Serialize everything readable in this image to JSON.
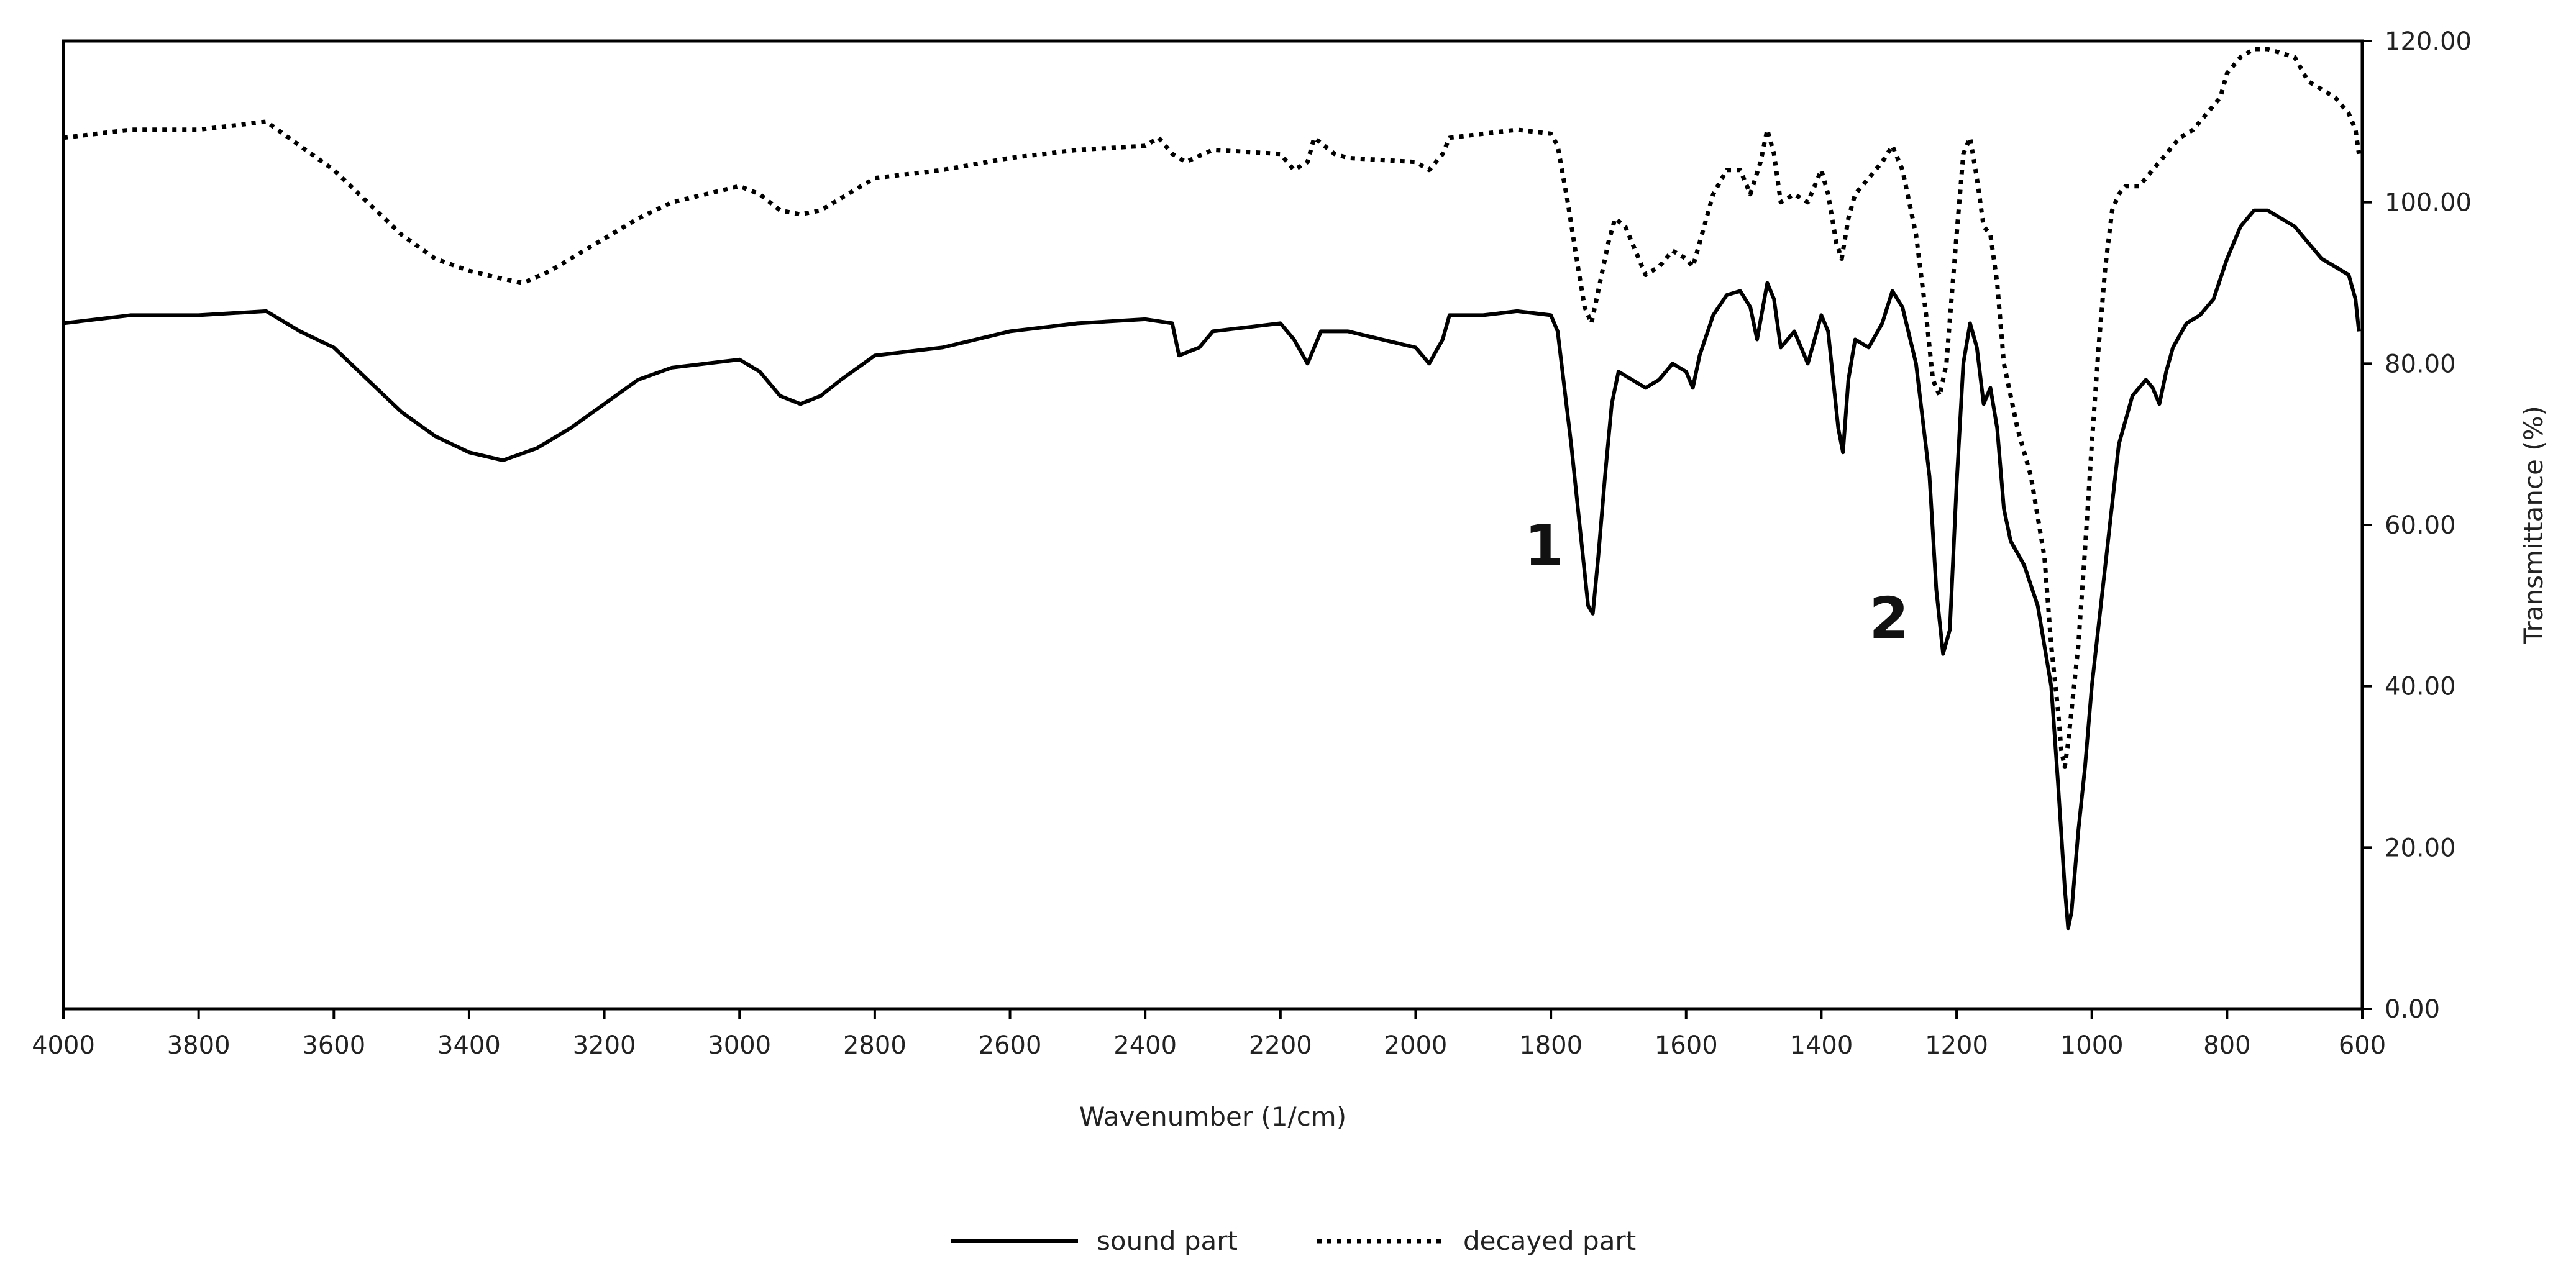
{
  "chart_data": {
    "type": "line",
    "title": "",
    "xlabel": "Wavenumber (1/cm)",
    "ylabel": "Transmittance (%)",
    "xlim": [
      4000,
      600
    ],
    "ylim": [
      0,
      120
    ],
    "x_reversed": true,
    "y_axis_side": "right",
    "grid": false,
    "legend_position": "bottom-center",
    "x_ticks": [
      "4000",
      "3800",
      "3600",
      "3400",
      "3200",
      "3000",
      "2800",
      "2600",
      "2400",
      "2200",
      "2000",
      "1800",
      "1600",
      "1400",
      "1200",
      "1000",
      "800",
      "600"
    ],
    "y_ticks": [
      "0.00",
      "20.00",
      "40.00",
      "60.00",
      "80.00",
      "100.00",
      "120.00"
    ],
    "annotations": [
      {
        "text": "1",
        "x": 1810,
        "y": 55
      },
      {
        "text": "2",
        "x": 1300,
        "y": 46
      }
    ],
    "series": [
      {
        "name": "sound part",
        "style": "solid",
        "color": "#000000",
        "points": [
          [
            4000,
            85
          ],
          [
            3900,
            86
          ],
          [
            3800,
            86
          ],
          [
            3700,
            86.5
          ],
          [
            3650,
            84
          ],
          [
            3600,
            82
          ],
          [
            3550,
            78
          ],
          [
            3500,
            74
          ],
          [
            3450,
            71
          ],
          [
            3400,
            69
          ],
          [
            3350,
            68
          ],
          [
            3300,
            69.5
          ],
          [
            3250,
            72
          ],
          [
            3200,
            75
          ],
          [
            3150,
            78
          ],
          [
            3100,
            79.5
          ],
          [
            3050,
            80
          ],
          [
            3000,
            80.5
          ],
          [
            2970,
            79
          ],
          [
            2940,
            76
          ],
          [
            2910,
            75
          ],
          [
            2880,
            76
          ],
          [
            2850,
            78
          ],
          [
            2800,
            81
          ],
          [
            2700,
            82
          ],
          [
            2600,
            84
          ],
          [
            2500,
            85
          ],
          [
            2400,
            85.5
          ],
          [
            2360,
            85
          ],
          [
            2350,
            81
          ],
          [
            2320,
            82
          ],
          [
            2300,
            84
          ],
          [
            2200,
            85
          ],
          [
            2180,
            83
          ],
          [
            2160,
            80
          ],
          [
            2140,
            84
          ],
          [
            2100,
            84
          ],
          [
            2000,
            82
          ],
          [
            1980,
            80
          ],
          [
            1960,
            83
          ],
          [
            1950,
            86
          ],
          [
            1900,
            86
          ],
          [
            1850,
            86.5
          ],
          [
            1800,
            86
          ],
          [
            1790,
            84
          ],
          [
            1770,
            70
          ],
          [
            1755,
            58
          ],
          [
            1745,
            50
          ],
          [
            1738,
            49
          ],
          [
            1730,
            56
          ],
          [
            1720,
            66
          ],
          [
            1710,
            75
          ],
          [
            1700,
            79
          ],
          [
            1680,
            78
          ],
          [
            1660,
            77
          ],
          [
            1640,
            78
          ],
          [
            1620,
            80
          ],
          [
            1600,
            79
          ],
          [
            1590,
            77
          ],
          [
            1580,
            81
          ],
          [
            1560,
            86
          ],
          [
            1540,
            88.5
          ],
          [
            1520,
            89
          ],
          [
            1505,
            87
          ],
          [
            1495,
            83
          ],
          [
            1480,
            90
          ],
          [
            1470,
            88
          ],
          [
            1460,
            82
          ],
          [
            1440,
            84
          ],
          [
            1430,
            82
          ],
          [
            1420,
            80
          ],
          [
            1400,
            86
          ],
          [
            1390,
            84
          ],
          [
            1375,
            72
          ],
          [
            1368,
            69
          ],
          [
            1360,
            78
          ],
          [
            1350,
            83
          ],
          [
            1330,
            82
          ],
          [
            1310,
            85
          ],
          [
            1295,
            89
          ],
          [
            1280,
            87
          ],
          [
            1260,
            80
          ],
          [
            1240,
            66
          ],
          [
            1230,
            52
          ],
          [
            1220,
            44
          ],
          [
            1210,
            47
          ],
          [
            1200,
            65
          ],
          [
            1190,
            80
          ],
          [
            1180,
            85
          ],
          [
            1170,
            82
          ],
          [
            1160,
            75
          ],
          [
            1150,
            77
          ],
          [
            1140,
            72
          ],
          [
            1130,
            62
          ],
          [
            1120,
            58
          ],
          [
            1100,
            55
          ],
          [
            1080,
            50
          ],
          [
            1060,
            40
          ],
          [
            1050,
            28
          ],
          [
            1040,
            15
          ],
          [
            1035,
            10
          ],
          [
            1030,
            12
          ],
          [
            1020,
            22
          ],
          [
            1010,
            30
          ],
          [
            1000,
            40
          ],
          [
            980,
            55
          ],
          [
            960,
            70
          ],
          [
            940,
            76
          ],
          [
            920,
            78
          ],
          [
            910,
            77
          ],
          [
            900,
            75
          ],
          [
            890,
            79
          ],
          [
            880,
            82
          ],
          [
            860,
            85
          ],
          [
            840,
            86
          ],
          [
            820,
            88
          ],
          [
            800,
            93
          ],
          [
            780,
            97
          ],
          [
            760,
            99
          ],
          [
            740,
            99
          ],
          [
            720,
            98
          ],
          [
            700,
            97
          ],
          [
            680,
            95
          ],
          [
            660,
            93
          ],
          [
            640,
            92
          ],
          [
            620,
            91
          ],
          [
            610,
            88
          ],
          [
            605,
            84
          ]
        ]
      },
      {
        "name": "decayed part",
        "style": "dotted",
        "color": "#000000",
        "points": [
          [
            4000,
            108
          ],
          [
            3900,
            109
          ],
          [
            3800,
            109
          ],
          [
            3700,
            110
          ],
          [
            3650,
            107
          ],
          [
            3600,
            104
          ],
          [
            3550,
            100
          ],
          [
            3500,
            96
          ],
          [
            3450,
            93
          ],
          [
            3400,
            91.5
          ],
          [
            3350,
            90.5
          ],
          [
            3320,
            90
          ],
          [
            3280,
            91.5
          ],
          [
            3250,
            93
          ],
          [
            3200,
            95.5
          ],
          [
            3150,
            98
          ],
          [
            3100,
            100
          ],
          [
            3050,
            101
          ],
          [
            3000,
            102
          ],
          [
            2970,
            101
          ],
          [
            2940,
            99
          ],
          [
            2910,
            98.5
          ],
          [
            2880,
            99
          ],
          [
            2850,
            100.5
          ],
          [
            2800,
            103
          ],
          [
            2700,
            104
          ],
          [
            2600,
            105.5
          ],
          [
            2500,
            106.5
          ],
          [
            2400,
            107
          ],
          [
            2380,
            108
          ],
          [
            2360,
            106
          ],
          [
            2340,
            105
          ],
          [
            2300,
            106.5
          ],
          [
            2200,
            106
          ],
          [
            2180,
            104
          ],
          [
            2160,
            105
          ],
          [
            2150,
            108
          ],
          [
            2120,
            106
          ],
          [
            2100,
            105.5
          ],
          [
            2000,
            105
          ],
          [
            1980,
            104
          ],
          [
            1960,
            106
          ],
          [
            1950,
            108
          ],
          [
            1900,
            108.5
          ],
          [
            1850,
            109
          ],
          [
            1800,
            108.5
          ],
          [
            1790,
            107
          ],
          [
            1775,
            100
          ],
          [
            1760,
            92
          ],
          [
            1750,
            87
          ],
          [
            1740,
            85
          ],
          [
            1730,
            89
          ],
          [
            1715,
            95
          ],
          [
            1705,
            98
          ],
          [
            1690,
            97
          ],
          [
            1670,
            93
          ],
          [
            1660,
            91
          ],
          [
            1640,
            92
          ],
          [
            1620,
            94
          ],
          [
            1600,
            93
          ],
          [
            1590,
            92
          ],
          [
            1580,
            95
          ],
          [
            1560,
            101
          ],
          [
            1540,
            104
          ],
          [
            1520,
            104
          ],
          [
            1505,
            101
          ],
          [
            1490,
            105
          ],
          [
            1480,
            109
          ],
          [
            1470,
            106
          ],
          [
            1460,
            100
          ],
          [
            1440,
            101
          ],
          [
            1420,
            100
          ],
          [
            1400,
            104
          ],
          [
            1390,
            101
          ],
          [
            1378,
            95
          ],
          [
            1370,
            93
          ],
          [
            1360,
            98
          ],
          [
            1350,
            101
          ],
          [
            1330,
            103
          ],
          [
            1310,
            105
          ],
          [
            1295,
            107
          ],
          [
            1280,
            104
          ],
          [
            1260,
            96
          ],
          [
            1245,
            86
          ],
          [
            1235,
            78
          ],
          [
            1225,
            76
          ],
          [
            1215,
            80
          ],
          [
            1200,
            96
          ],
          [
            1190,
            106
          ],
          [
            1180,
            108
          ],
          [
            1170,
            103
          ],
          [
            1160,
            97
          ],
          [
            1150,
            96
          ],
          [
            1140,
            90
          ],
          [
            1130,
            80
          ],
          [
            1110,
            72
          ],
          [
            1090,
            66
          ],
          [
            1070,
            56
          ],
          [
            1060,
            45
          ],
          [
            1050,
            37
          ],
          [
            1045,
            32
          ],
          [
            1040,
            30
          ],
          [
            1035,
            33
          ],
          [
            1020,
            45
          ],
          [
            1010,
            57
          ],
          [
            1000,
            70
          ],
          [
            990,
            82
          ],
          [
            980,
            92
          ],
          [
            970,
            99
          ],
          [
            960,
            101
          ],
          [
            950,
            102
          ],
          [
            930,
            102
          ],
          [
            910,
            104
          ],
          [
            890,
            106
          ],
          [
            870,
            108
          ],
          [
            850,
            109
          ],
          [
            830,
            111
          ],
          [
            810,
            113
          ],
          [
            800,
            116
          ],
          [
            780,
            118
          ],
          [
            760,
            119
          ],
          [
            740,
            119
          ],
          [
            720,
            118.5
          ],
          [
            700,
            118
          ],
          [
            680,
            115
          ],
          [
            660,
            114
          ],
          [
            640,
            113
          ],
          [
            620,
            111
          ],
          [
            610,
            109
          ],
          [
            605,
            106
          ]
        ]
      }
    ]
  }
}
